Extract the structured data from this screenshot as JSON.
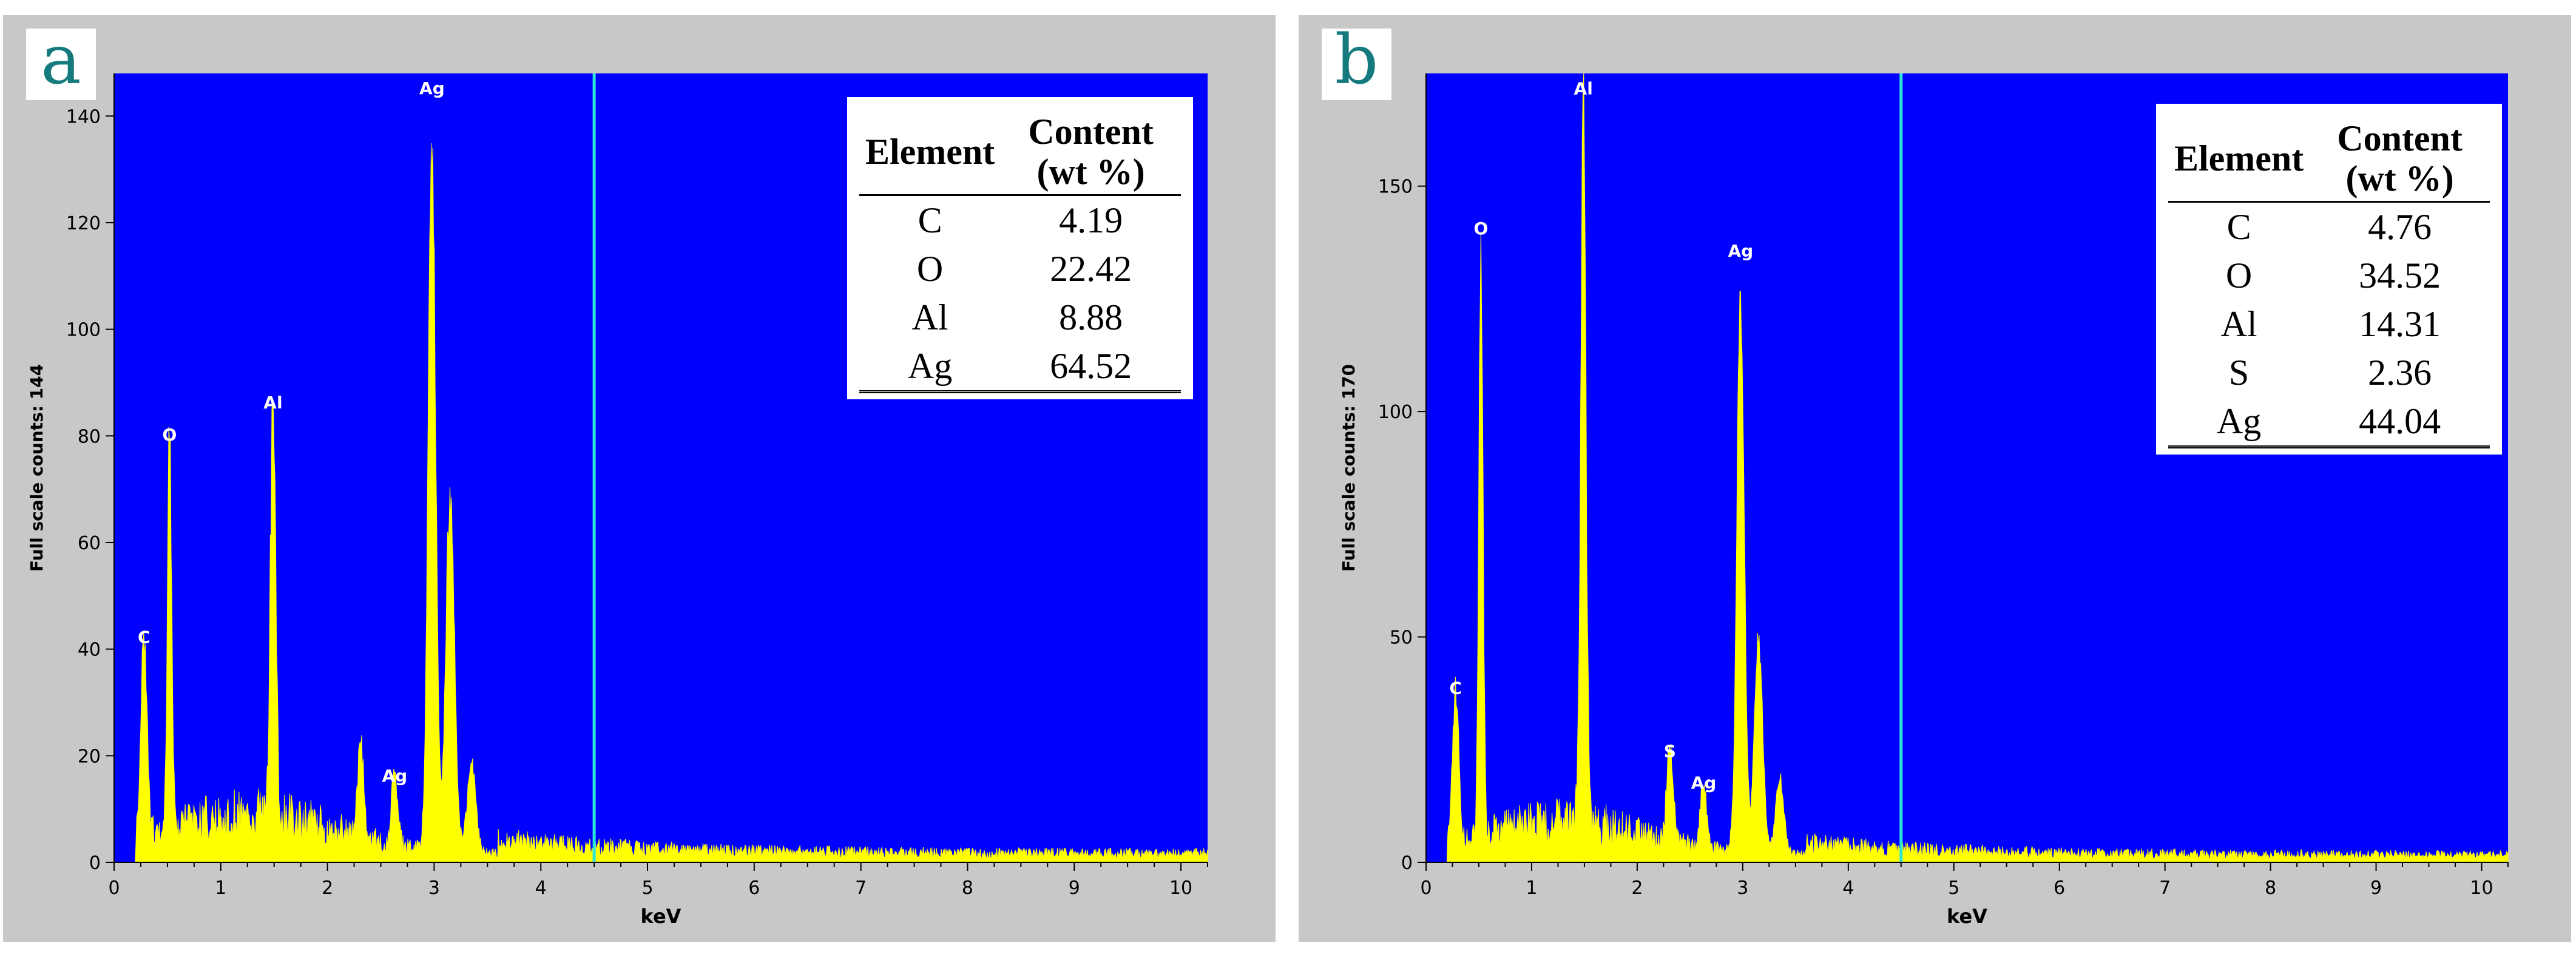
{
  "chart_data": [
    {
      "type": "spectrum",
      "panel_label": "a",
      "xlabel": "keV",
      "ylabel": "Full scale counts: 144",
      "xlim": [
        0,
        10.25
      ],
      "ylim": [
        0,
        148
      ],
      "xticks": [
        "0",
        "1",
        "2",
        "3",
        "4",
        "5",
        "6",
        "7",
        "8",
        "9",
        "10"
      ],
      "yticks": [
        "0",
        "20",
        "40",
        "60",
        "80",
        "100",
        "120",
        "140"
      ],
      "cursor_keV": 4.5,
      "colors": {
        "plot_bg": "#0000ff",
        "spectrum": "#ffff00",
        "cursor": "#2ee6d6",
        "frame": "#c8c8c8"
      },
      "peaks": [
        {
          "keV": 0.28,
          "counts": 40,
          "width": 0.03,
          "label": "C"
        },
        {
          "keV": 0.52,
          "counts": 78,
          "width": 0.02,
          "label": "O"
        },
        {
          "keV": 1.49,
          "counts": 84,
          "width": 0.025,
          "label": "Al"
        },
        {
          "keV": 2.31,
          "counts": 20,
          "width": 0.03,
          "label": ""
        },
        {
          "keV": 2.63,
          "counts": 14,
          "width": 0.03,
          "label": "Ag"
        },
        {
          "keV": 2.98,
          "counts": 143,
          "width": 0.035,
          "label": "Ag"
        },
        {
          "keV": 3.15,
          "counts": 72,
          "width": 0.04,
          "label": ""
        },
        {
          "keV": 3.35,
          "counts": 18,
          "width": 0.04,
          "label": ""
        }
      ],
      "table": {
        "headers": [
          "Element",
          "Content (wt %)"
        ],
        "rows": [
          [
            "C",
            "4.19"
          ],
          [
            "O",
            "22.42"
          ],
          [
            "Al",
            "8.88"
          ],
          [
            "Ag",
            "64.52"
          ]
        ]
      }
    },
    {
      "type": "spectrum",
      "panel_label": "b",
      "xlabel": "keV",
      "ylabel": "Full scale counts: 170",
      "xlim": [
        0,
        10.25
      ],
      "ylim": [
        0,
        175
      ],
      "xticks": [
        "0",
        "1",
        "2",
        "3",
        "4",
        "5",
        "6",
        "7",
        "8",
        "9",
        "10"
      ],
      "yticks": [
        "0",
        "50",
        "100",
        "150"
      ],
      "cursor_keV": 4.5,
      "colors": {
        "plot_bg": "#0000ff",
        "spectrum": "#ffff00",
        "cursor": "#2ee6d6",
        "frame": "#c8c8c8"
      },
      "peaks": [
        {
          "keV": 0.28,
          "counts": 36,
          "width": 0.03,
          "label": "C"
        },
        {
          "keV": 0.52,
          "counts": 138,
          "width": 0.02,
          "label": "O"
        },
        {
          "keV": 1.49,
          "counts": 169,
          "width": 0.025,
          "label": "Al"
        },
        {
          "keV": 2.31,
          "counts": 22,
          "width": 0.03,
          "label": "S"
        },
        {
          "keV": 2.63,
          "counts": 15,
          "width": 0.03,
          "label": "Ag"
        },
        {
          "keV": 2.98,
          "counts": 133,
          "width": 0.035,
          "label": "Ag"
        },
        {
          "keV": 3.15,
          "counts": 50,
          "width": 0.04,
          "label": ""
        },
        {
          "keV": 3.35,
          "counts": 18,
          "width": 0.04,
          "label": ""
        }
      ],
      "table": {
        "headers": [
          "Element",
          "Content (wt %)"
        ],
        "rows": [
          [
            "C",
            "4.76"
          ],
          [
            "O",
            "34.52"
          ],
          [
            "Al",
            "14.31"
          ],
          [
            "S",
            "2.36"
          ],
          [
            "Ag",
            "44.04"
          ]
        ]
      }
    }
  ]
}
